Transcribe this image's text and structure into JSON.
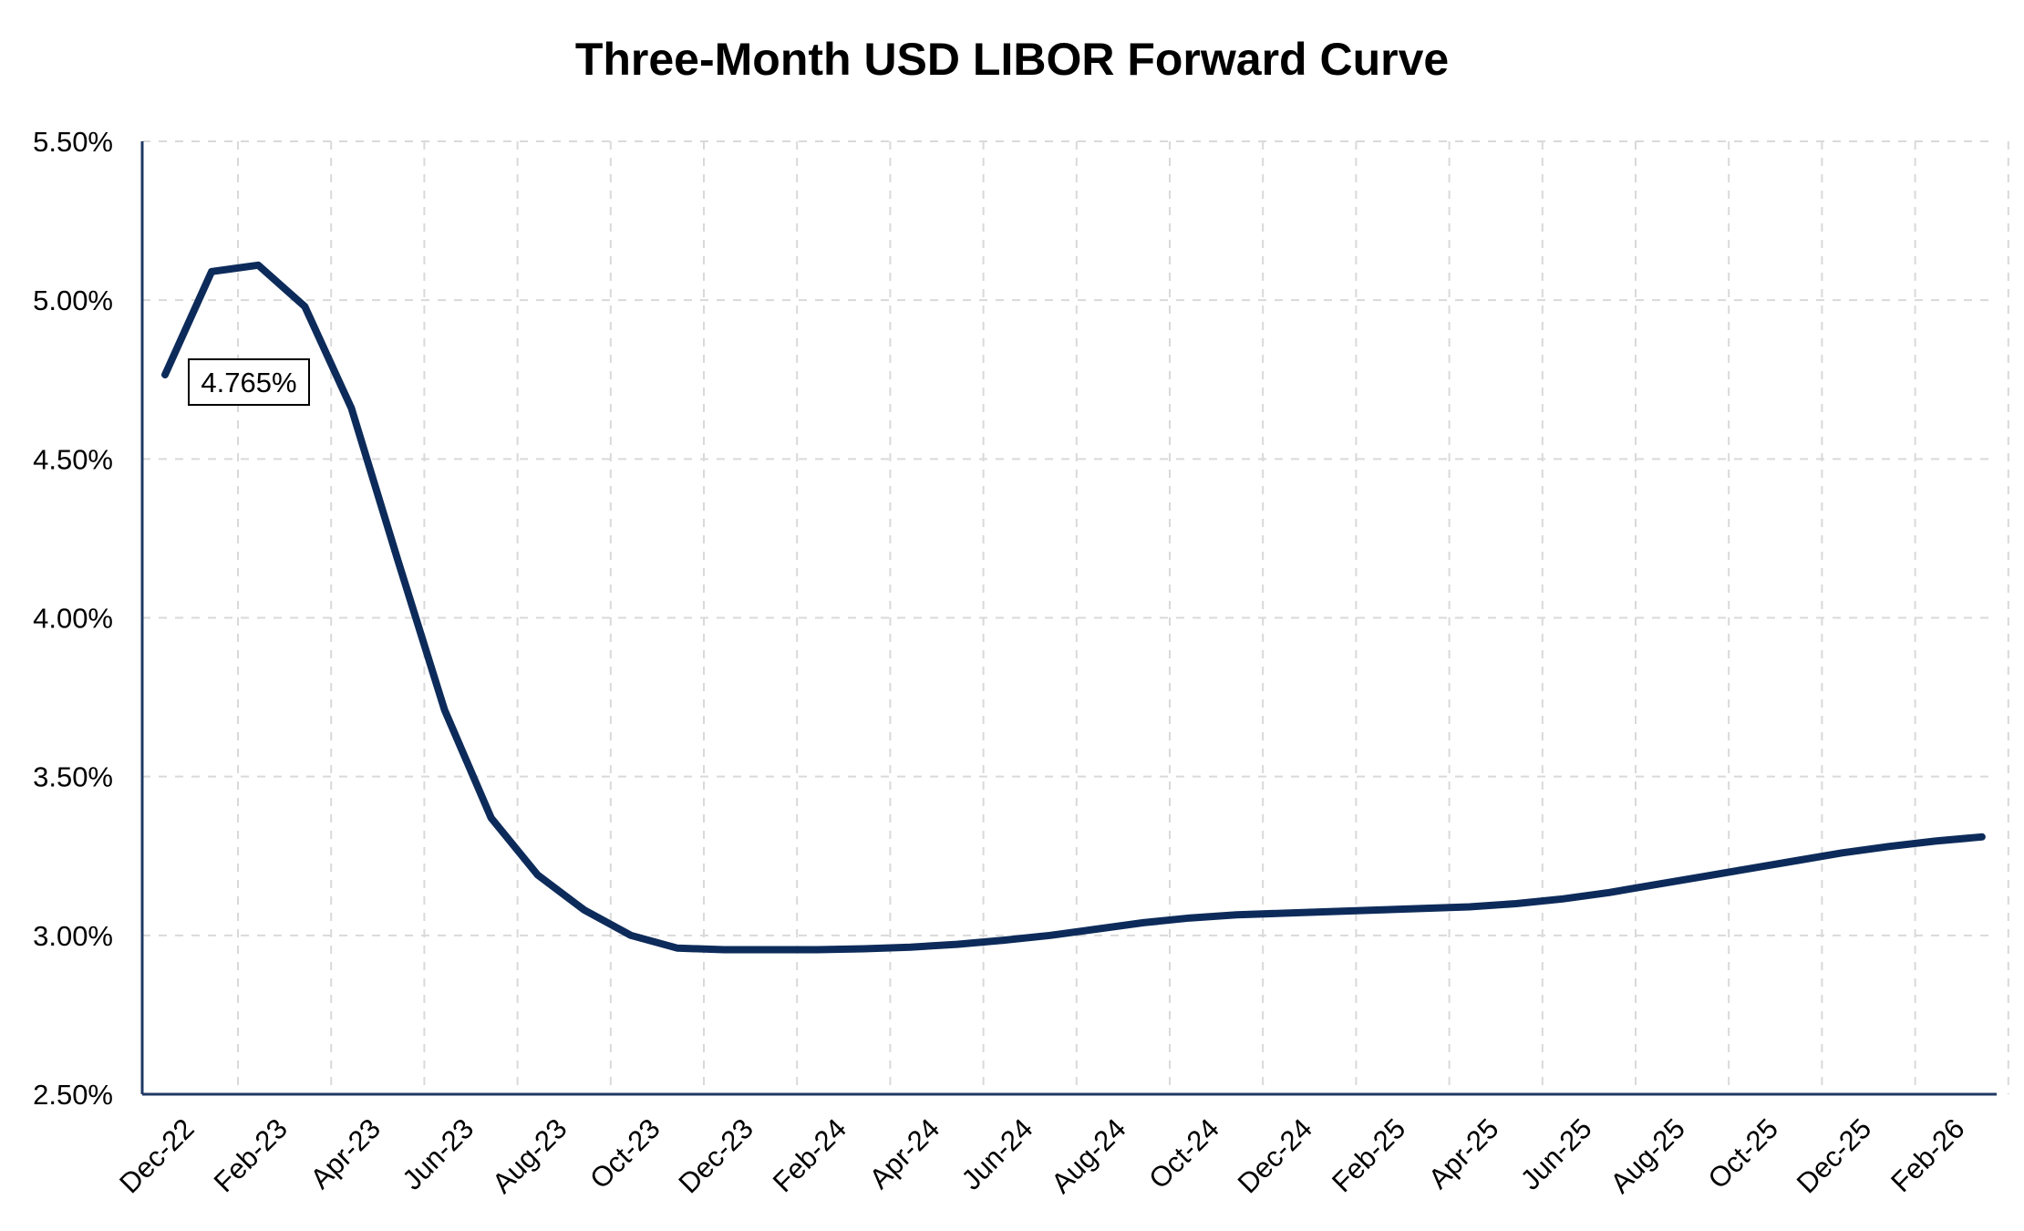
{
  "chart_data": {
    "type": "line",
    "title": "Three-Month USD LIBOR Forward Curve",
    "xlabel": "",
    "ylabel": "",
    "ylim": [
      2.5,
      5.5
    ],
    "y_ticks": [
      "2.50%",
      "3.00%",
      "3.50%",
      "4.00%",
      "4.50%",
      "5.00%",
      "5.50%"
    ],
    "x_tick_labels": [
      "Dec-22",
      "Feb-23",
      "Apr-23",
      "Jun-23",
      "Aug-23",
      "Oct-23",
      "Dec-23",
      "Feb-24",
      "Apr-24",
      "Jun-24",
      "Aug-24",
      "Oct-24",
      "Dec-24",
      "Feb-25",
      "Apr-25",
      "Jun-25",
      "Aug-25",
      "Oct-25",
      "Dec-25",
      "Feb-26"
    ],
    "grid": true,
    "line_color": "#0d2b5a",
    "grid_color": "#d9d9d9",
    "axis_color": "#1f3864",
    "series": [
      {
        "x": [
          "Dec-22",
          "Jan-23",
          "Feb-23",
          "Mar-23",
          "Apr-23",
          "May-23",
          "Jun-23",
          "Jul-23",
          "Aug-23",
          "Sep-23",
          "Oct-23",
          "Nov-23",
          "Dec-23",
          "Jan-24",
          "Feb-24",
          "Mar-24",
          "Apr-24",
          "May-24",
          "Jun-24",
          "Jul-24",
          "Aug-24",
          "Sep-24",
          "Oct-24",
          "Nov-24",
          "Dec-24",
          "Jan-25",
          "Feb-25",
          "Mar-25",
          "Apr-25",
          "May-25",
          "Jun-25",
          "Jul-25",
          "Aug-25",
          "Sep-25",
          "Oct-25",
          "Nov-25",
          "Dec-25",
          "Jan-26",
          "Feb-26",
          "Mar-26"
        ],
        "values": [
          4.765,
          5.09,
          5.11,
          4.98,
          4.66,
          4.18,
          3.71,
          3.37,
          3.19,
          3.08,
          3.0,
          2.96,
          2.955,
          2.955,
          2.955,
          2.958,
          2.963,
          2.972,
          2.985,
          3.0,
          3.02,
          3.04,
          3.055,
          3.065,
          3.07,
          3.075,
          3.08,
          3.085,
          3.09,
          3.1,
          3.115,
          3.135,
          3.16,
          3.185,
          3.21,
          3.235,
          3.26,
          3.28,
          3.297,
          3.31
        ]
      }
    ],
    "annotations": [
      {
        "text": "4.765%",
        "x": "Dec-22",
        "value": 4.765
      }
    ]
  }
}
